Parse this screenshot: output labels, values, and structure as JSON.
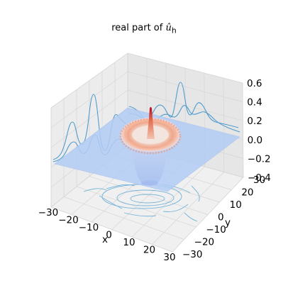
{
  "chart_data": {
    "type": "surface3d",
    "title_prefix": "real part of ",
    "title_symbol": "û",
    "title_subscript": "h",
    "xlabel": "x",
    "ylabel": "y",
    "zlabel": "",
    "xlim": [
      -30,
      30
    ],
    "ylim": [
      -30,
      30
    ],
    "zlim": [
      -0.4,
      0.6
    ],
    "x_ticks": [
      "−30",
      "−20",
      "−10",
      "0",
      "10",
      "20",
      "30"
    ],
    "y_ticks": [
      "−30",
      "−20",
      "−10",
      "0",
      "10",
      "20",
      "30"
    ],
    "z_ticks": [
      "−0.4",
      "−0.2",
      "0.0",
      "0.2",
      "0.4",
      "0.6"
    ],
    "grid": true,
    "colormap": "coolwarm",
    "surface": {
      "peak_value": 0.55,
      "ring_radius": 8,
      "ring_value": 0.15,
      "trough_value": -0.4,
      "plane_value": 0.0
    },
    "projections": [
      "contour on x-wall",
      "contour on y-wall",
      "contour on floor"
    ]
  },
  "colors": {
    "plane": "#b3cdf5",
    "peak": "#c0392b",
    "ring_warm": "#f4a88a",
    "trough": "#9db8ee",
    "contour": "#5aa5d6",
    "pane": "#f2f2f2",
    "grid": "#d4d4d4"
  }
}
